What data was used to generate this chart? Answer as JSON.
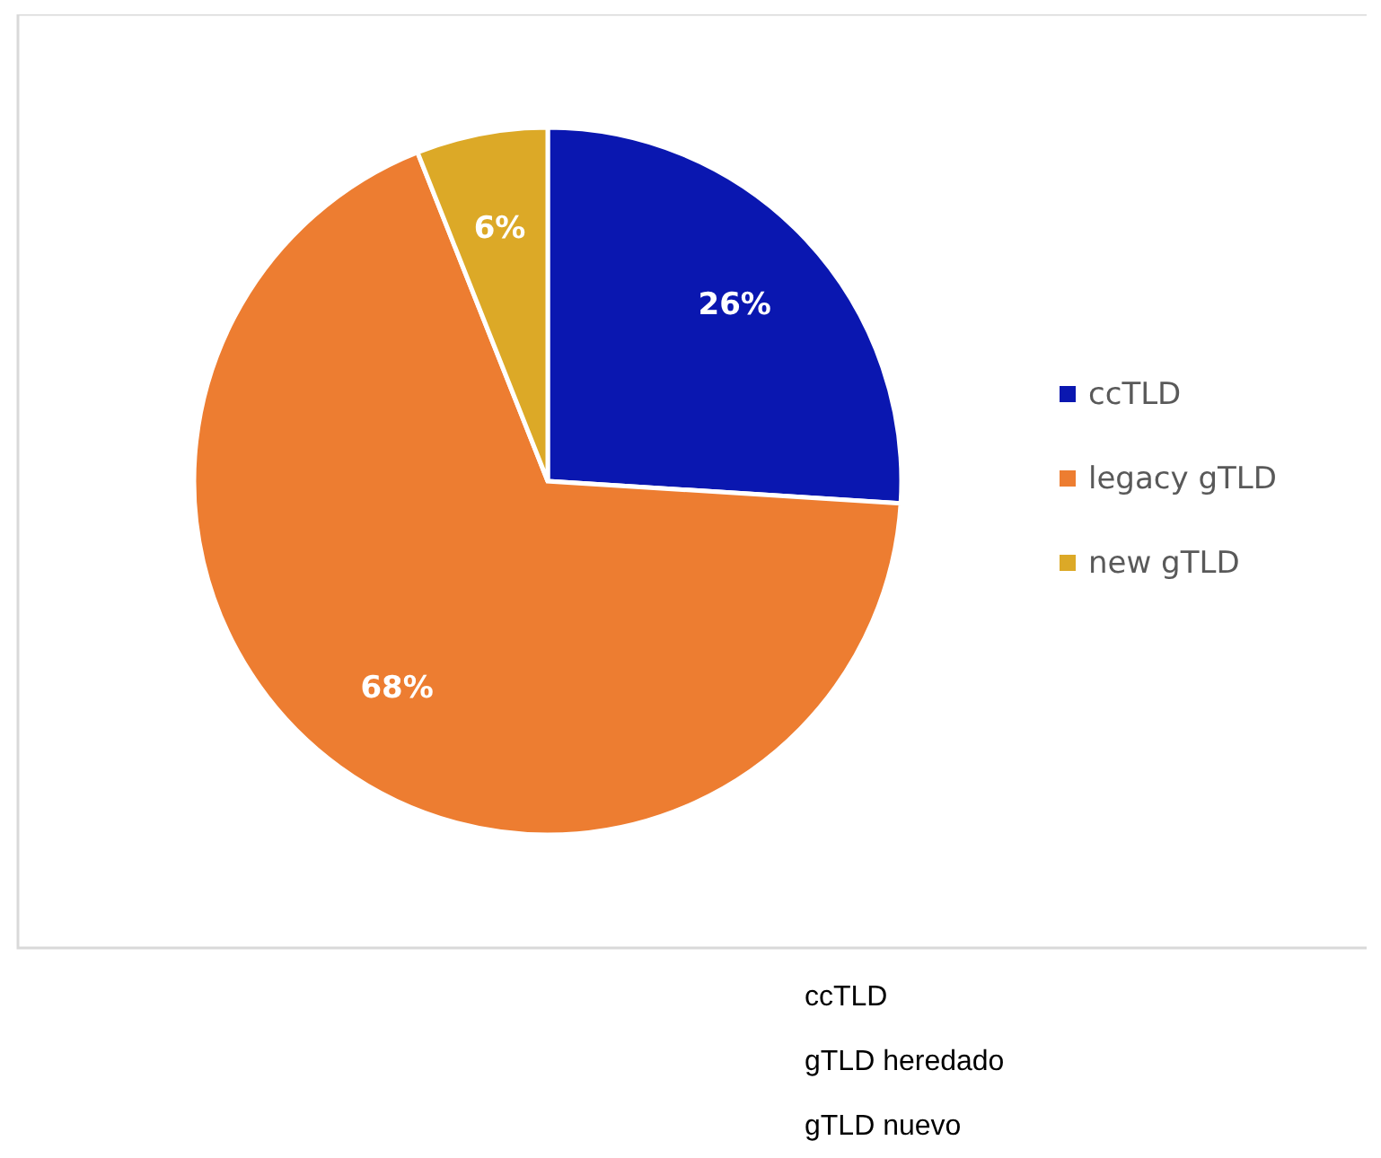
{
  "chart_data": {
    "type": "pie",
    "categories": [
      "ccTLD",
      "legacy gTLD",
      "new gTLD"
    ],
    "values": [
      26,
      68,
      6
    ],
    "colors": [
      "#0a17b0",
      "#ed7d31",
      "#dca927"
    ],
    "value_labels": [
      "26%",
      "68%",
      "6%"
    ],
    "legend": "right",
    "annotations": [
      "ccTLD",
      "gTLD heredado",
      "gTLD nuevo"
    ]
  }
}
